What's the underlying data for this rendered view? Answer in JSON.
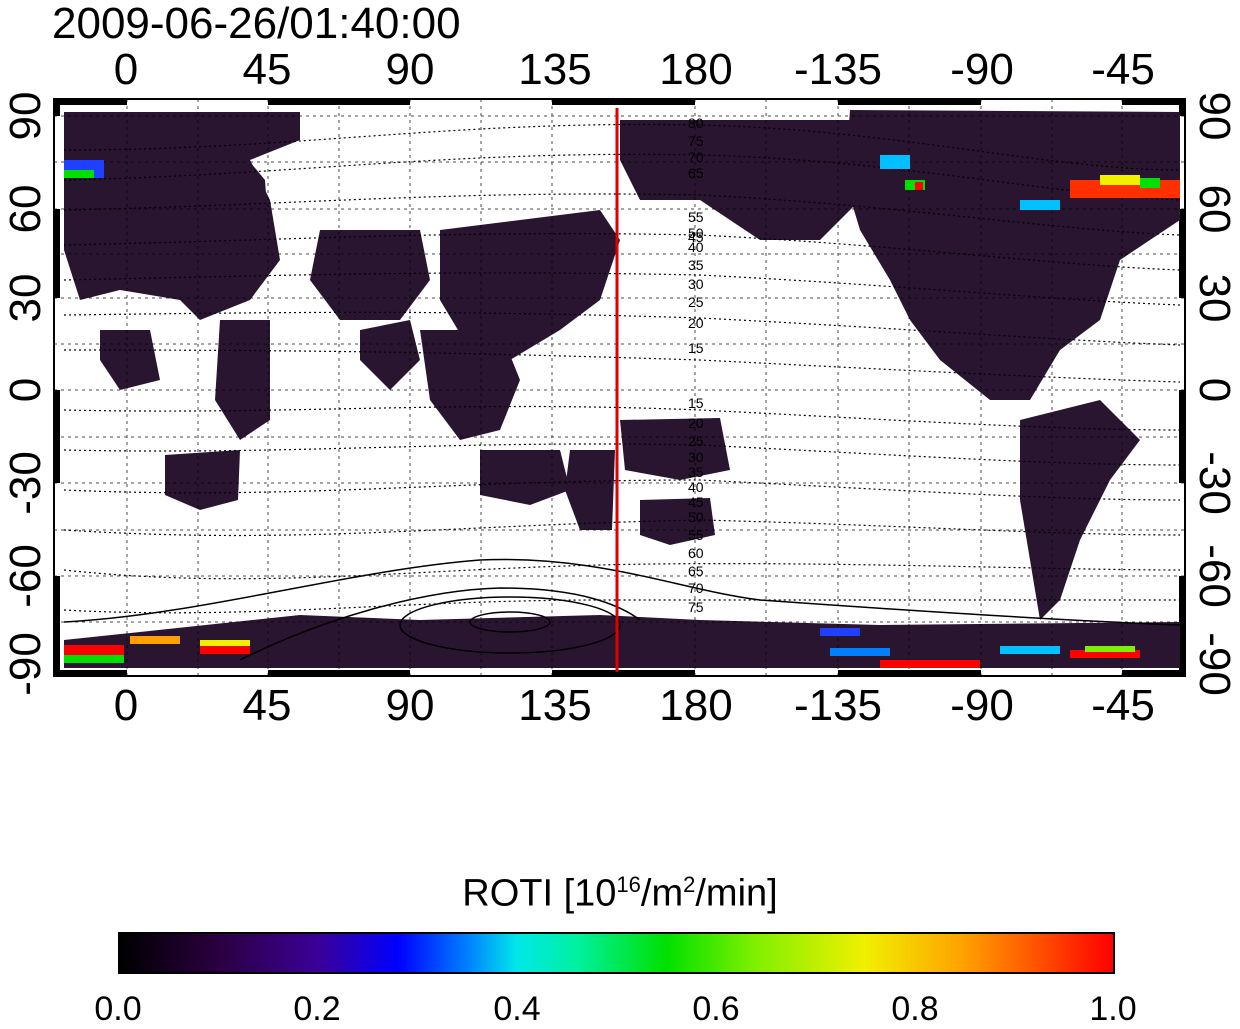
{
  "title": "2009-06-26/01:40:00",
  "x_ticks": [
    "0",
    "45",
    "90",
    "135",
    "180",
    "-135",
    "-90",
    "-45"
  ],
  "y_ticks_left": [
    "90",
    "60",
    "30",
    "0",
    "-30",
    "-60",
    "-90"
  ],
  "y_ticks_right": [
    "90",
    "60",
    "30",
    "0",
    "-30",
    "-60",
    "-90"
  ],
  "contour_labels_north": [
    "80",
    "75",
    "70",
    "65",
    "55",
    "50",
    "45",
    "40",
    "35",
    "30",
    "25",
    "20",
    "15"
  ],
  "contour_labels_south": [
    "15",
    "20",
    "25",
    "30",
    "35",
    "40",
    "45",
    "50",
    "55",
    "60",
    "65",
    "70",
    "75"
  ],
  "meridian_line_lon": 155,
  "colorbar": {
    "label_main": "ROTI  [10",
    "label_sup1": "16",
    "label_mid": "/m",
    "label_sup2": "2",
    "label_end": "/min]",
    "ticks": [
      "0.0",
      "0.2",
      "0.4",
      "0.6",
      "0.8",
      "1.0"
    ],
    "range": [
      0.0,
      1.0
    ]
  },
  "colors": {
    "background_dark": "#2a1530",
    "meridian": "#e00000"
  }
}
